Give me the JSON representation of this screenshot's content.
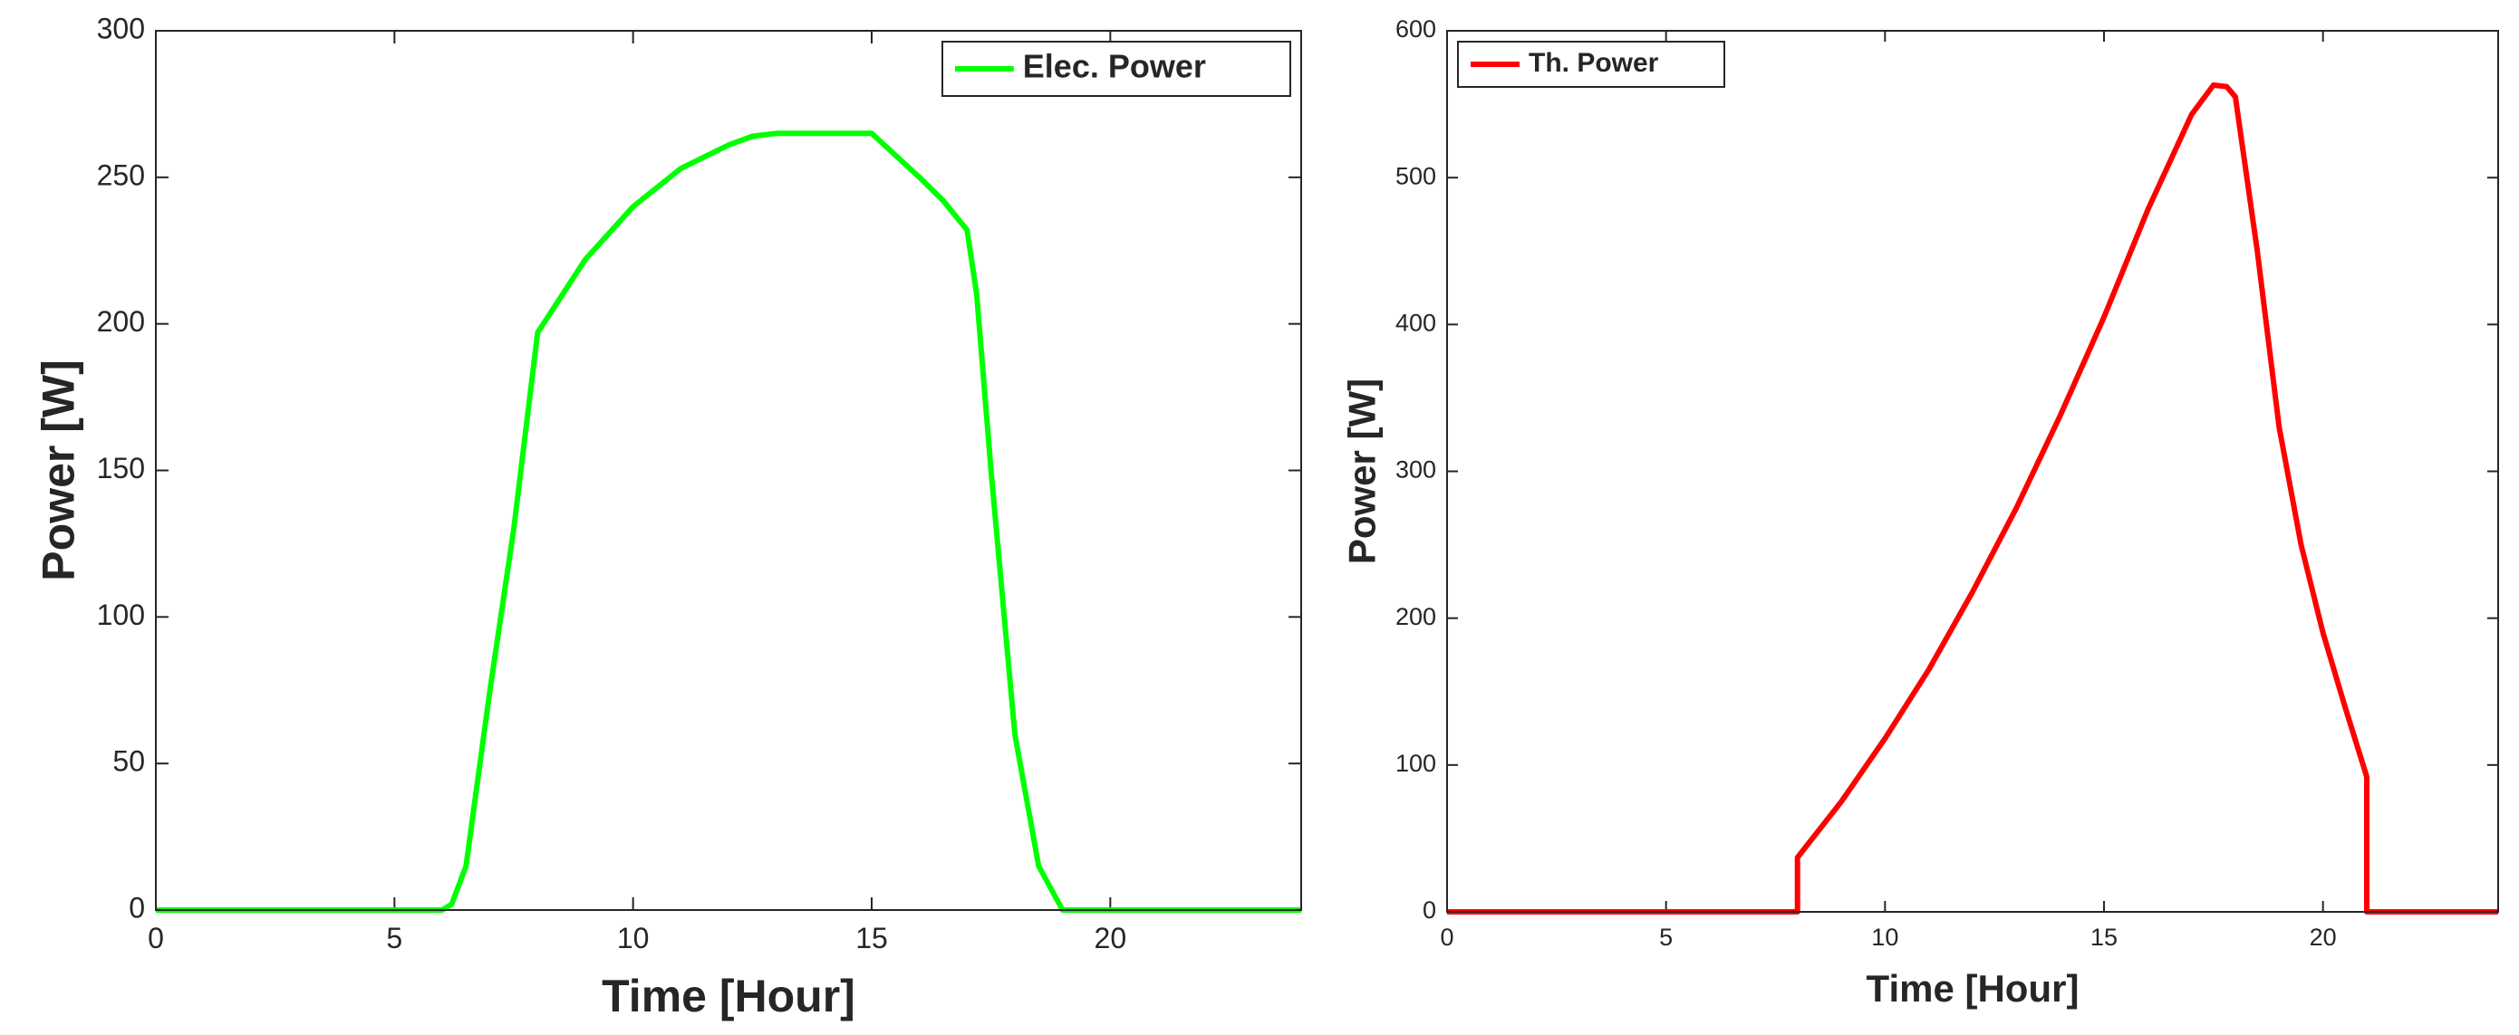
{
  "chart_data": [
    {
      "type": "line",
      "xlabel": "Time [Hour]",
      "ylabel": "Power [W]",
      "x": [
        0,
        6,
        6.2,
        6.5,
        7,
        7.5,
        8,
        9,
        10,
        11,
        12,
        12.5,
        13,
        14,
        15,
        16,
        16.5,
        17,
        17.2,
        17.5,
        18,
        18.5,
        19,
        24
      ],
      "series": [
        {
          "name": "Elec. Power",
          "color": "#00ff00",
          "values": [
            0,
            0,
            2,
            15,
            75,
            130,
            197,
            222,
            240,
            253,
            261,
            264,
            265,
            265,
            265,
            250,
            242,
            232,
            210,
            150,
            60,
            15,
            0,
            0
          ]
        }
      ],
      "xlim": [
        0,
        24
      ],
      "xticks": [
        0,
        5,
        10,
        15,
        20
      ],
      "ylim": [
        0,
        300
      ],
      "yticks": [
        0,
        50,
        100,
        150,
        200,
        250,
        300
      ],
      "legend": "upper right"
    },
    {
      "type": "line",
      "xlabel": "Time [Hour]",
      "ylabel": "Power [W]",
      "x": [
        0,
        8,
        8,
        9,
        10,
        11,
        12,
        13,
        14,
        15,
        16,
        17,
        17.5,
        17.8,
        18,
        18.5,
        19,
        19.5,
        20,
        20.5,
        21,
        21,
        24
      ],
      "series": [
        {
          "name": "Th. Power",
          "color": "#ff0000",
          "values": [
            0,
            0,
            37,
            75,
            118,
            165,
            218,
            275,
            338,
            405,
            478,
            543,
            563,
            562,
            555,
            450,
            330,
            250,
            190,
            140,
            92,
            0,
            0
          ]
        }
      ],
      "xlim": [
        0,
        24
      ],
      "xticks": [
        0,
        5,
        10,
        15,
        20
      ],
      "ylim": [
        0,
        600
      ],
      "yticks": [
        0,
        100,
        200,
        300,
        400,
        500,
        600
      ],
      "legend": "upper left"
    }
  ]
}
